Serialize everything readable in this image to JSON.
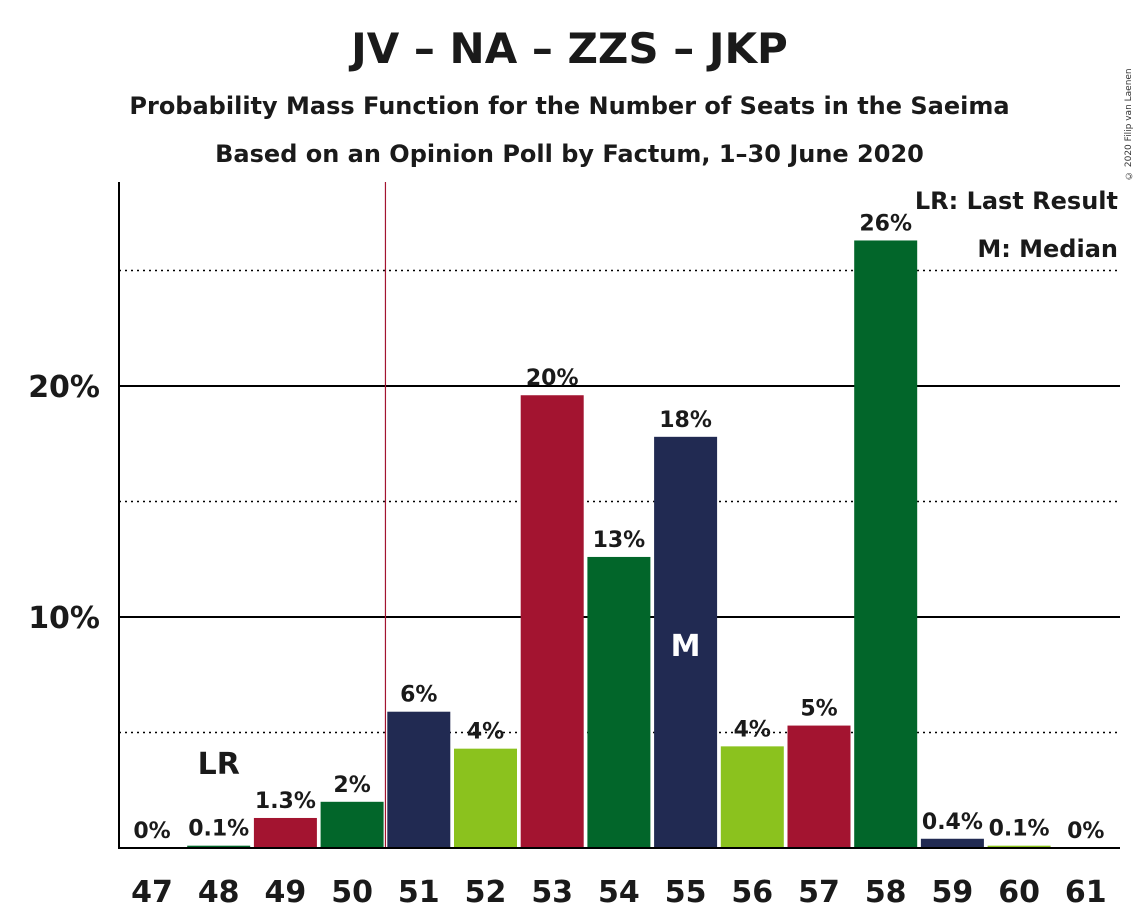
{
  "header": {
    "title": "JV – NA – ZZS – JKP",
    "subtitle1": "Probability Mass Function for the Number of Seats in the Saeima",
    "subtitle2": "Based on an Opinion Poll by Factum, 1–30 June 2020",
    "copyright": "© 2020 Filip van Laenen"
  },
  "legend": {
    "lr": "LR: Last Result",
    "median": "M: Median"
  },
  "markers": {
    "last_result_label": "LR",
    "median_label": "M"
  },
  "colors": {
    "crimson": "#a31430",
    "green": "#02662a",
    "navy": "#212a52",
    "lime": "#8bc21e",
    "last_result_line": "#a31430"
  },
  "chart_data": {
    "type": "bar",
    "categories": [
      "47",
      "48",
      "49",
      "50",
      "51",
      "52",
      "53",
      "54",
      "55",
      "56",
      "57",
      "58",
      "59",
      "60",
      "61"
    ],
    "values": [
      0,
      0.1,
      1.3,
      2,
      5.9,
      4.3,
      19.6,
      12.6,
      17.8,
      4.4,
      5.3,
      26.3,
      0.4,
      0.1,
      0
    ],
    "labels": [
      "0%",
      "0.1%",
      "1.3%",
      "2%",
      "6%",
      "4%",
      "20%",
      "13%",
      "18%",
      "4%",
      "5%",
      "26%",
      "0.4%",
      "0.1%",
      "0%"
    ],
    "bar_colors": [
      "#a31430",
      "#02662a",
      "#a31430",
      "#02662a",
      "#212a52",
      "#8bc21e",
      "#a31430",
      "#02662a",
      "#212a52",
      "#8bc21e",
      "#a31430",
      "#02662a",
      "#212a52",
      "#8bc21e",
      "#a31430"
    ],
    "yticks": [
      10,
      20
    ],
    "ytick_labels": [
      "10%",
      "20%"
    ],
    "minor_gridlines": [
      5,
      15,
      25
    ],
    "ylim": [
      0,
      28.5
    ],
    "last_result": "48",
    "last_result_line_after": "50",
    "median": "55",
    "unit": "%"
  }
}
